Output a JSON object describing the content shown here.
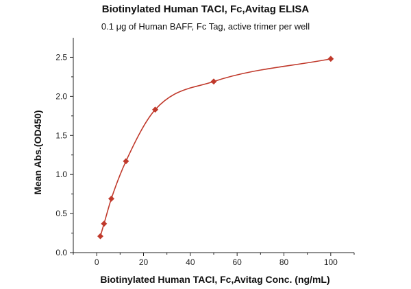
{
  "chart_data": {
    "type": "scatter",
    "title": "Biotinylated Human TACI, Fc,Avitag ELISA",
    "subtitle": "0.1 μg of Human BAFF, Fc Tag, active trimer per well",
    "xlabel": "Biotinylated Human TACI, Fc,Avitag Conc. (ng/mL)",
    "ylabel": "Mean Abs.(OD450)",
    "xlim": [
      -10,
      110
    ],
    "ylim": [
      0,
      2.75
    ],
    "xticks": [
      0,
      20,
      40,
      60,
      80,
      100
    ],
    "yticks": [
      0.0,
      0.5,
      1.0,
      1.5,
      2.0,
      2.5
    ],
    "xtick_labels": [
      "0",
      "20",
      "40",
      "60",
      "80",
      "100"
    ],
    "ytick_labels": [
      "0.0",
      "0.5",
      "1.0",
      "1.5",
      "2.0",
      "2.5"
    ],
    "grid": false,
    "series": [
      {
        "color": "#c0392b",
        "marker": "diamond",
        "fit_line": true,
        "x": [
          1.5625,
          3.125,
          6.25,
          12.5,
          25,
          50,
          100
        ],
        "y": [
          0.21,
          0.37,
          0.69,
          1.17,
          1.83,
          2.19,
          2.48
        ]
      }
    ]
  }
}
